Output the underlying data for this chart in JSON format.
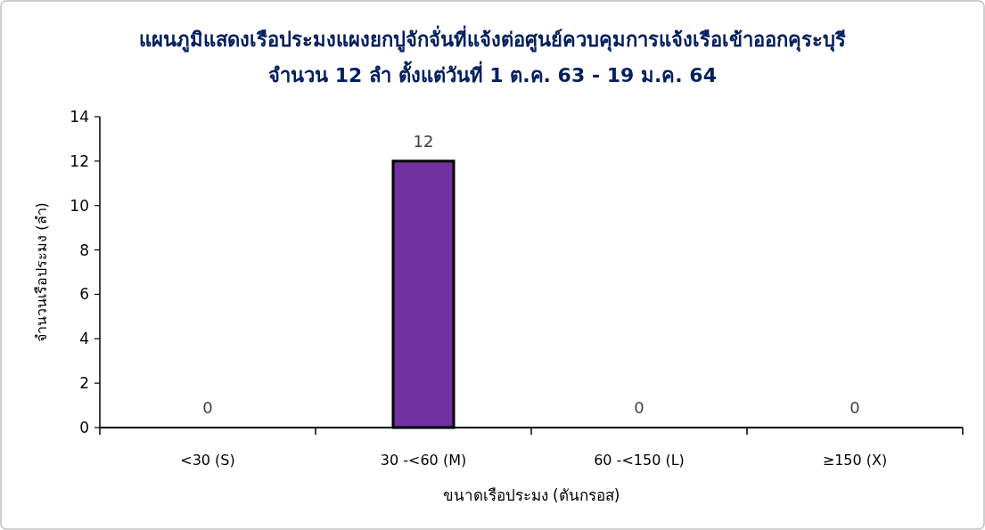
{
  "chart_data": {
    "type": "bar",
    "title": "แผนภูมิแสดงเรือประมงแผงยกปูจักจั่นที่แจ้งต่อศูนย์ควบคุมการแจ้งเรือเข้าออกคุระบุรี",
    "subtitle": "จำนวน 12 ลำ ตั้งแต่วันที่ 1 ต.ค. 63 - 19 ม.ค. 64",
    "xlabel": "ขนาดเรือประมง (ตันกรอส)",
    "ylabel": "จำนวนเรือประมง (ลำ)",
    "categories": [
      "<30 (S)",
      "30 -<60 (M)",
      "60 -<150 (L)",
      "≥150 (X)"
    ],
    "values": [
      0,
      12,
      0,
      0
    ],
    "color": "#7030a0",
    "ylim": [
      0,
      14
    ],
    "yticks": [
      0,
      2,
      4,
      6,
      8,
      10,
      12,
      14
    ],
    "data_labels": true
  }
}
